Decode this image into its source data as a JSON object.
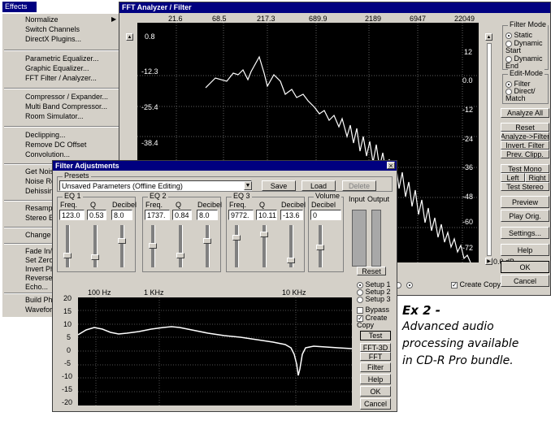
{
  "menu": {
    "title": "Effects",
    "items": [
      "Normalize",
      "Switch Channels",
      "DirectX Plugins...",
      "Parametric Equalizer...",
      "Graphic Equalizer...",
      "FFT Filter / Analyzer...",
      "Compressor / Expander...",
      "Multi Band Compressor...",
      "Room Simulator...",
      "Declipping...",
      "Remove DC Offset",
      "Convolution...",
      "Get Noise Sample",
      "Noise Reduc",
      "Dehissing...",
      "Resample /",
      "Stereo Enha",
      "Change Sam",
      "Fade In/Out",
      "Set Zero",
      "Invert Phase",
      "Reverse",
      "Echo...",
      "Build Physica",
      "Waveform G"
    ]
  },
  "fft": {
    "title": "FFT Analyzer / Filter",
    "freq_ticks": [
      "21.6",
      "68.5",
      "217.3",
      "689.9",
      "2189",
      "6947",
      "22049"
    ],
    "left_ticks": [
      "0.8",
      "-12.3",
      "-25.4",
      "-38.4"
    ],
    "right_ticks": [
      "12",
      "0.0",
      "-12",
      "-24",
      "-36",
      "-48",
      "-60",
      "-72"
    ],
    "db_value": "0.0 dB",
    "filter_mode_title": "Filter Mode",
    "filter_modes": [
      "Static",
      "Dynamic Start",
      "Dynamic End"
    ],
    "edit_mode_title": "Edit-Mode",
    "edit_modes": [
      "Filter",
      "Direct/ Match"
    ],
    "analyze_all": "Analyze All",
    "reset": "Reset",
    "analyze_filter": "Analyze->Filter",
    "invert_filter": "Invert. Filter",
    "prev_clipp": "Prev. Clipp.",
    "test_mono": "Test Mono",
    "left": "Left",
    "right": "Right",
    "test_stereo": "Test Stereo",
    "preview": "Preview",
    "play_orig": "Play Orig.",
    "settings": "Settings...",
    "help": "Help",
    "ok": "OK",
    "cancel": "Cancel",
    "create_copy": "Create Copy"
  },
  "dialog": {
    "title": "Filter Adjustments",
    "close": "×",
    "presets_label": "Presets",
    "preset_value": "Unsaved Parameters (Offline Editing)",
    "save": "Save",
    "load": "Load",
    "delete": "Delete",
    "eq_groups": [
      {
        "name": "EQ 1",
        "freq_label": "Freq.",
        "q_label": "Q",
        "db_label": "Decibel",
        "freq": "123.0",
        "q": "0.53",
        "db": "8.0"
      },
      {
        "name": "EQ 2",
        "freq_label": "Freq.",
        "q_label": "Q",
        "db_label": "Decibel",
        "freq": "1737.",
        "q": "0.84",
        "db": "8.0"
      },
      {
        "name": "EQ 3",
        "freq_label": "Freq.",
        "q_label": "Q",
        "db_label": "Decibel",
        "freq": "9772.",
        "q": "10.11",
        "db": "-13.6"
      }
    ],
    "volume_title": "Volume",
    "volume_label": "Decibel",
    "volume_value": "0",
    "input_label": "Input",
    "output_label": "Output",
    "reset": "Reset",
    "setups": [
      "Setup 1",
      "Setup 2",
      "Setup 3"
    ],
    "bypass": "Bypass",
    "create_copy": "Create Copy",
    "test": "Test",
    "fft3d": "FFT-3D",
    "fft": "FFT",
    "filter": "Filter",
    "help": "Help",
    "ok": "OK",
    "cancel": "Cancel",
    "graph_x_labels": [
      "100 Hz",
      "1 KHz",
      "10 KHz"
    ],
    "graph_y_labels": [
      "20",
      "15",
      "10",
      "5",
      "0",
      "-5",
      "-10",
      "-15",
      "-20"
    ]
  },
  "caption": {
    "heading": "Ex 2 -",
    "body": "Advanced audio processing available in CD-R Pro bundle."
  }
}
